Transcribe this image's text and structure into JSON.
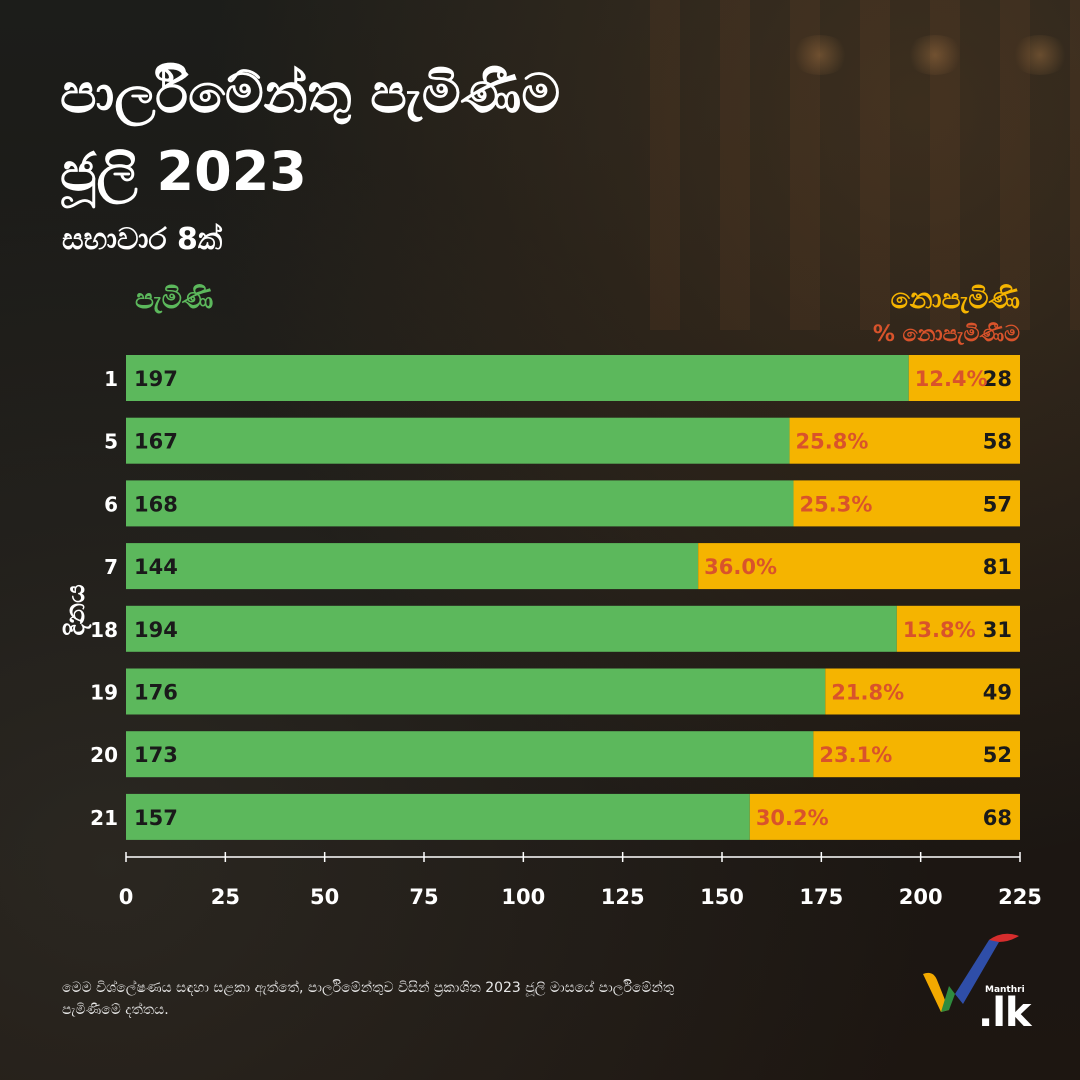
{
  "title_line1": "පාර්ලිමේන්තු පැමිණීම",
  "title_line2": "ජූලි 2023",
  "subtitle": "සභාවාර 8ක්",
  "legend": {
    "present": "පැමිණි",
    "absent": "නොපැමිණි",
    "absent_pct": "% නොපැමිණීම"
  },
  "footnote": "මෙම විශ්ලේෂණය සඳහා සළකා ඇත්තේ, පාර්ලිමේන්තුව විසින් ප්‍රකාශිත 2023 ජූලි මාසයේ පාර්ලිමේන්තු පැමිණීමේ දත්තය.",
  "logo": {
    "brand": "Manthri",
    "suffix": ".lk"
  },
  "colors": {
    "present": "#5cb85c",
    "absent": "#f5b400",
    "pct": "#d9532b"
  },
  "chart_data": {
    "type": "bar",
    "orientation": "horizontal",
    "stacked": true,
    "ylabel": "දිනය",
    "categories": [
      "1",
      "5",
      "6",
      "7",
      "18",
      "19",
      "20",
      "21"
    ],
    "series": [
      {
        "name": "පැමිණි",
        "values": [
          197,
          167,
          168,
          144,
          194,
          176,
          173,
          157
        ]
      },
      {
        "name": "නොපැමිණි",
        "values": [
          28,
          58,
          57,
          81,
          31,
          49,
          52,
          68
        ]
      }
    ],
    "absent_percent_labels": [
      "12.4%",
      "25.8%",
      "25.3%",
      "36.0%",
      "13.8%",
      "21.8%",
      "23.1%",
      "30.2%"
    ],
    "xlim": [
      0,
      225
    ],
    "xticks": [
      0,
      25,
      50,
      75,
      100,
      125,
      150,
      175,
      200,
      225
    ],
    "grid": false,
    "legend_position": "top"
  }
}
